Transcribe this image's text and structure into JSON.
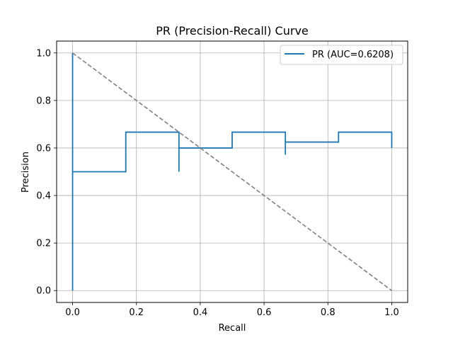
{
  "chart_data": {
    "type": "line",
    "title": "PR (Precision-Recall) Curve",
    "xlabel": "Recall",
    "ylabel": "Precision",
    "xlim": [
      -0.05,
      1.05
    ],
    "ylim": [
      -0.05,
      1.05
    ],
    "xticks": [
      0.0,
      0.2,
      0.4,
      0.6,
      0.8,
      1.0
    ],
    "yticks": [
      0.0,
      0.2,
      0.4,
      0.6,
      0.8,
      1.0
    ],
    "xtick_labels": [
      "0.0",
      "0.2",
      "0.4",
      "0.6",
      "0.8",
      "1.0"
    ],
    "ytick_labels": [
      "0.0",
      "0.2",
      "0.4",
      "0.6",
      "0.8",
      "1.0"
    ],
    "grid": true,
    "legend_position": "top-right",
    "series": [
      {
        "name": "PR (AUC=0.6208)",
        "style": "step",
        "color": "#1f77b4",
        "x": [
          0.0,
          0.0,
          0.0,
          0.1667,
          0.1667,
          0.3333,
          0.3333,
          0.3333,
          0.5,
          0.5,
          0.6667,
          0.6667,
          0.6667,
          0.8333,
          0.8333,
          1.0,
          1.0
        ],
        "y": [
          0.0,
          1.0,
          0.5,
          0.5,
          0.6667,
          0.6667,
          0.5,
          0.6,
          0.6,
          0.6667,
          0.6667,
          0.5714,
          0.625,
          0.625,
          0.6667,
          0.6667,
          0.6
        ]
      },
      {
        "name": "baseline",
        "style": "dashed",
        "color": "#808080",
        "x": [
          0.0,
          1.0
        ],
        "y": [
          1.0,
          0.0
        ]
      }
    ]
  }
}
